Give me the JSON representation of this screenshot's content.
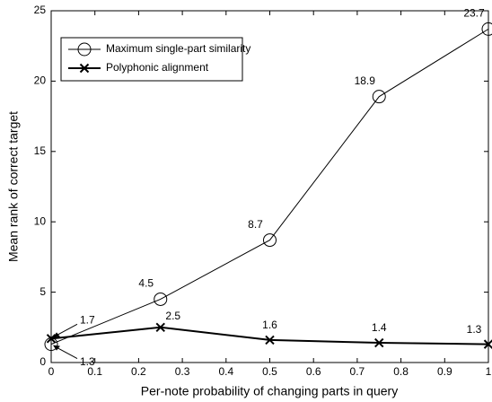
{
  "chart_data": {
    "type": "line",
    "xlabel": "Per-note probability of changing parts in query",
    "ylabel": "Mean rank of correct target",
    "x": [
      0,
      0.25,
      0.5,
      0.75,
      1
    ],
    "series": [
      {
        "name": "Maximum single-part similarity",
        "color": "#000000",
        "marker": "o",
        "line_width": 1,
        "values": [
          1.3,
          4.5,
          8.7,
          18.9,
          23.7
        ]
      },
      {
        "name": "Polyphonic alignment",
        "color": "#000000",
        "marker": "x",
        "line_width": 2,
        "values": [
          1.7,
          2.5,
          1.6,
          1.4,
          1.3
        ]
      }
    ],
    "xlim": [
      0,
      1
    ],
    "xticks": [
      0,
      0.1,
      0.2,
      0.3,
      0.4,
      0.5,
      0.6,
      0.7,
      0.8,
      0.9,
      1
    ],
    "ylim": [
      0,
      25
    ],
    "yticks": [
      0,
      5,
      10,
      15,
      20,
      25
    ],
    "legend": "upper left"
  }
}
